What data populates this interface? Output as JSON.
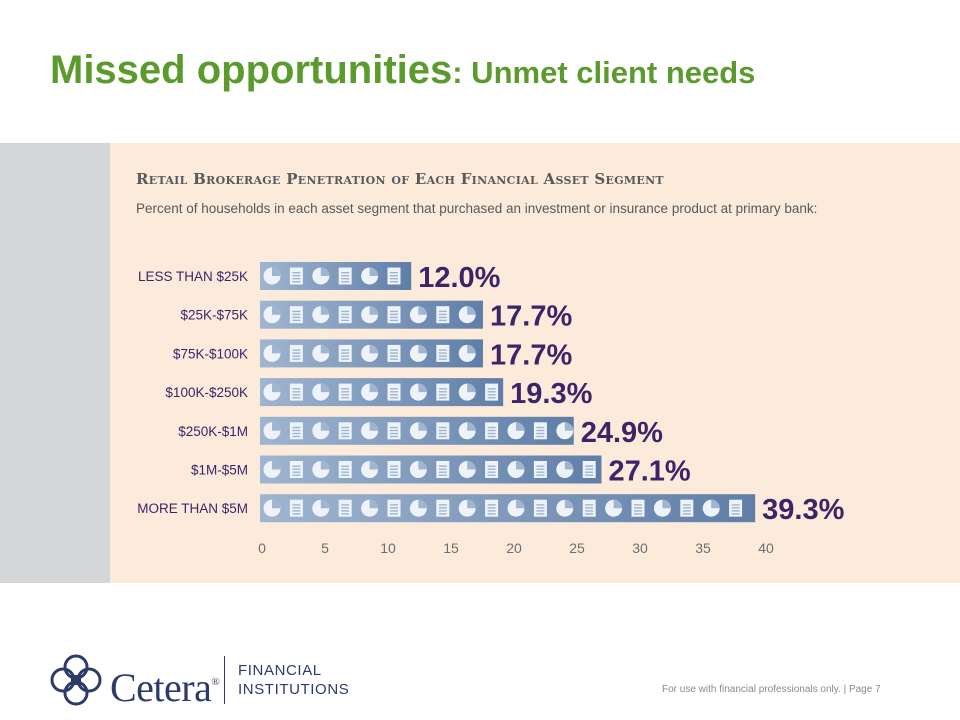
{
  "slide": {
    "title_main": "Missed opportunities",
    "title_sub": ": Unmet client needs",
    "footer_note": "For use with financial professionals only.  |  Page 7"
  },
  "logo": {
    "wordmark": "Cetera",
    "registered": "®",
    "line1": "FINANCIAL",
    "line2": "INSTITUTIONS",
    "brand_color": "#2d3a6b"
  },
  "chart_data": {
    "type": "bar",
    "orientation": "horizontal",
    "title": "Retail Brokerage Penetration of Each Financial Asset Segment",
    "subtitle": "Percent of households in each asset segment that purchased an investment or insurance product at primary bank:",
    "categories": [
      "LESS THAN $25K",
      "$25K-$75K",
      "$75K-$100K",
      "$100K-$250K",
      "$250K-$1M",
      "$1M-$5M",
      "MORE THAN $5M"
    ],
    "values": [
      12.0,
      17.7,
      17.7,
      19.3,
      24.9,
      27.1,
      39.3
    ],
    "value_labels": [
      "12.0%",
      "17.7%",
      "17.7%",
      "19.3%",
      "24.9%",
      "27.1%",
      "39.3%"
    ],
    "x_ticks": [
      0,
      5,
      10,
      15,
      20,
      25,
      30,
      35,
      40
    ],
    "xlim": [
      0,
      40
    ],
    "grid": false,
    "legend": "none",
    "colors": {
      "bar_start": "#9fb5d0",
      "bar_end": "#5f7ea8",
      "icon": "#eef3fa",
      "value_label": "#3b2468",
      "category_label": "#3b2468",
      "tick_label": "#6d6e71",
      "panel_background": "#fcebdb",
      "side_band": "#d4d6d8",
      "title": "#5b9a2c"
    },
    "icon_sequence": [
      "pie-chart-icon",
      "document-icon"
    ]
  }
}
